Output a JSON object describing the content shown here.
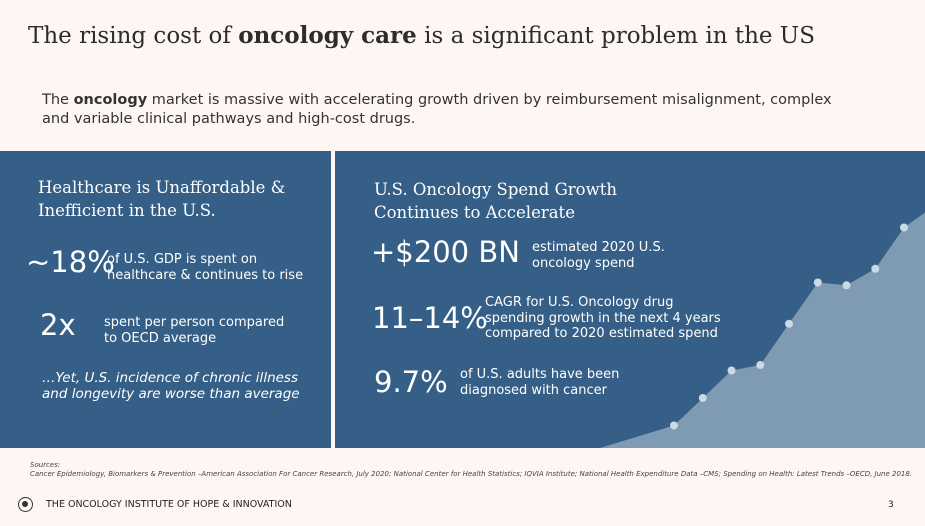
{
  "header": {
    "title_pre": "The rising cost of ",
    "title_bold": "oncology care",
    "title_post": " is a significant problem in the US"
  },
  "subtitle": {
    "pre": "The ",
    "bold": "oncology",
    "post": " market is massive with accelerating growth driven by reimbursement misalignment, complex and variable clinical pathways and high-cost drugs."
  },
  "left_panel": {
    "heading": "Healthcare is Unaffordable & Inefficient in the U.S.",
    "stats": [
      {
        "value": "~18%",
        "desc": "of U.S. GDP is spent on healthcare & continues to rise"
      },
      {
        "value": "2x",
        "desc": "spent per person compared to OECD average"
      }
    ],
    "footnote": "…Yet, U.S. incidence of chronic illness and longevity are worse than average"
  },
  "right_panel": {
    "heading": "U.S. Oncology Spend Growth Continues to Accelerate",
    "stats": [
      {
        "value": "+$200 BN",
        "desc": "estimated 2020 U.S. oncology spend"
      },
      {
        "value": "11–14%",
        "desc": "CAGR for U.S. Oncology drug spending growth in the next 4 years compared to 2020 estimated spend"
      },
      {
        "value": "9.7%",
        "desc": "of U.S. adults have been diagnosed with cancer"
      }
    ]
  },
  "sources": {
    "label": "Sources:",
    "text": "Cancer Epidemiology, Biomarkers & Prevention –American Association For Cancer Research, July 2020; National Center for Health Statistics; IQVIA Institute; National Health Expenditure Data –CMS; Spending on Health: Latest Trends –OECD, June 2018."
  },
  "footer": {
    "org": "THE ONCOLOGY INSTITUTE OF HOPE & INNOVATION",
    "page": "3"
  },
  "colors": {
    "panel": "#355f86",
    "area": "#7f9bb3",
    "background": "#fdf6f3"
  },
  "chart_data": {
    "type": "area",
    "title": "",
    "xlabel": "",
    "ylabel": "",
    "x": [
      1,
      2,
      3,
      4,
      5,
      6,
      7,
      8,
      9
    ],
    "values": [
      10,
      20,
      30,
      32,
      47,
      62,
      61,
      67,
      82
    ],
    "ylim": [
      0,
      100
    ]
  }
}
